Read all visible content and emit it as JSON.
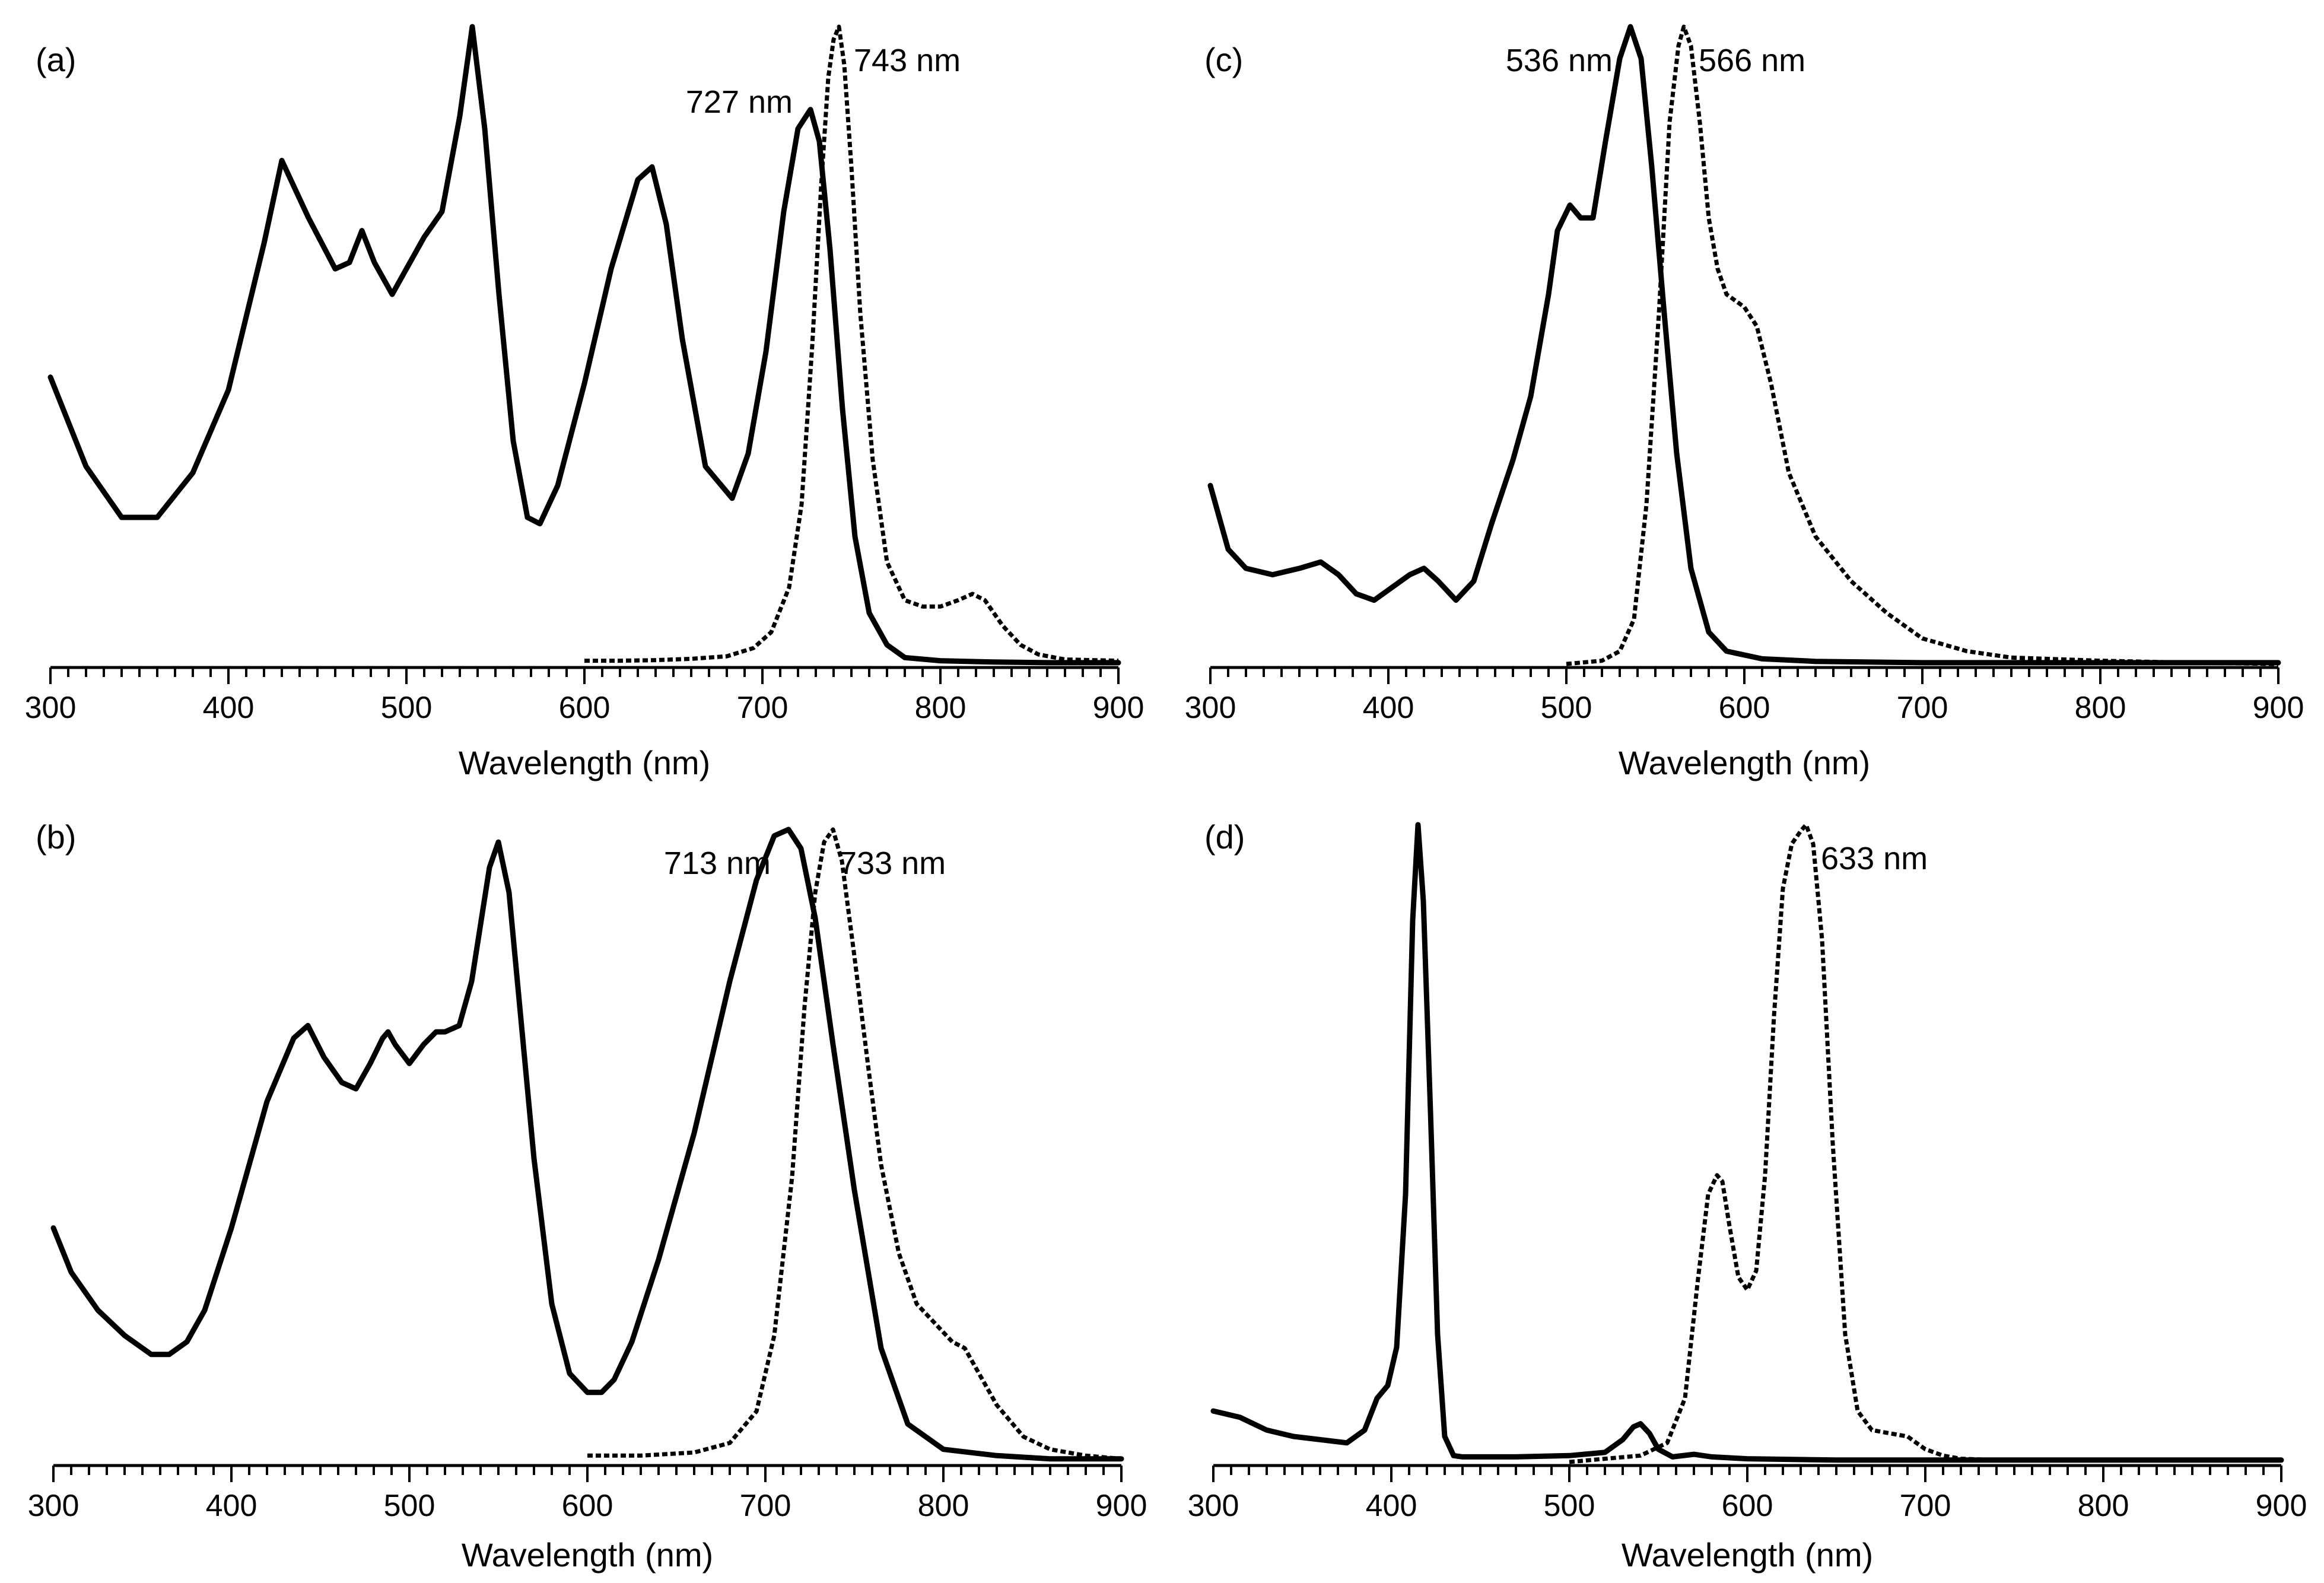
{
  "chart_data": [
    {
      "panel": "(a)",
      "type": "line",
      "xlabel": "Wavelength (nm)",
      "xlim": [
        300,
        900
      ],
      "ylim": [
        0,
        1
      ],
      "xticks": [
        300,
        400,
        500,
        600,
        700,
        800,
        900
      ],
      "annotations": [
        {
          "text": "727 nm",
          "x": 727
        },
        {
          "text": "743 nm",
          "x": 743
        }
      ],
      "series": [
        {
          "style": "solid",
          "x": [
            300,
            320,
            340,
            360,
            380,
            400,
            420,
            430,
            445,
            460,
            468,
            475,
            482,
            492,
            500,
            510,
            520,
            530,
            537,
            544,
            552,
            560,
            568,
            575,
            585,
            600,
            615,
            630,
            638,
            646,
            655,
            668,
            683,
            692,
            702,
            712,
            720,
            727,
            732,
            738,
            745,
            752,
            760,
            770,
            780,
            800,
            830,
            860,
            900
          ],
          "y": [
            0.45,
            0.31,
            0.23,
            0.23,
            0.3,
            0.43,
            0.66,
            0.79,
            0.7,
            0.62,
            0.63,
            0.68,
            0.63,
            0.58,
            0.62,
            0.67,
            0.71,
            0.86,
            1.0,
            0.84,
            0.58,
            0.35,
            0.23,
            0.22,
            0.28,
            0.44,
            0.62,
            0.76,
            0.78,
            0.69,
            0.51,
            0.31,
            0.26,
            0.33,
            0.49,
            0.71,
            0.84,
            0.87,
            0.82,
            0.65,
            0.4,
            0.2,
            0.08,
            0.03,
            0.01,
            0.005,
            0.003,
            0.002,
            0.002
          ]
        },
        {
          "style": "dotted",
          "x": [
            600,
            620,
            640,
            660,
            680,
            695,
            705,
            715,
            722,
            728,
            733,
            737,
            740,
            743,
            746,
            750,
            755,
            762,
            770,
            780,
            790,
            800,
            810,
            818,
            825,
            835,
            845,
            855,
            870,
            900
          ],
          "y": [
            0.005,
            0.005,
            0.006,
            0.008,
            0.012,
            0.025,
            0.05,
            0.12,
            0.25,
            0.5,
            0.75,
            0.92,
            0.98,
            1.0,
            0.94,
            0.78,
            0.55,
            0.32,
            0.16,
            0.1,
            0.09,
            0.09,
            0.1,
            0.11,
            0.1,
            0.06,
            0.03,
            0.015,
            0.007,
            0.005
          ]
        }
      ]
    },
    {
      "panel": "(b)",
      "type": "line",
      "xlabel": "Wavelength (nm)",
      "xlim": [
        300,
        900
      ],
      "ylim": [
        0,
        1
      ],
      "xticks": [
        300,
        400,
        500,
        600,
        700,
        800,
        900
      ],
      "annotations": [
        {
          "text": "713 nm",
          "x": 713
        },
        {
          "text": "733 nm",
          "x": 733
        }
      ],
      "series": [
        {
          "style": "solid",
          "x": [
            300,
            310,
            325,
            340,
            355,
            365,
            375,
            385,
            400,
            420,
            435,
            443,
            452,
            462,
            470,
            478,
            485,
            488,
            492,
            500,
            508,
            515,
            520,
            528,
            535,
            545,
            550,
            556,
            562,
            570,
            580,
            590,
            600,
            608,
            615,
            625,
            640,
            660,
            680,
            695,
            705,
            713,
            720,
            728,
            738,
            750,
            765,
            780,
            800,
            830,
            860,
            900
          ],
          "y": [
            0.37,
            0.3,
            0.24,
            0.2,
            0.17,
            0.17,
            0.19,
            0.24,
            0.37,
            0.57,
            0.67,
            0.69,
            0.64,
            0.6,
            0.59,
            0.63,
            0.67,
            0.68,
            0.66,
            0.63,
            0.66,
            0.68,
            0.68,
            0.69,
            0.76,
            0.94,
            0.98,
            0.9,
            0.72,
            0.48,
            0.25,
            0.14,
            0.11,
            0.11,
            0.13,
            0.19,
            0.32,
            0.52,
            0.76,
            0.92,
            0.99,
            1.0,
            0.97,
            0.86,
            0.66,
            0.43,
            0.18,
            0.06,
            0.02,
            0.01,
            0.005,
            0.005
          ]
        },
        {
          "style": "dotted",
          "x": [
            600,
            630,
            660,
            680,
            695,
            705,
            715,
            722,
            728,
            733,
            738,
            743,
            750,
            758,
            765,
            775,
            785,
            795,
            805,
            812,
            820,
            830,
            845,
            860,
            880,
            900
          ],
          "y": [
            0.01,
            0.01,
            0.015,
            0.03,
            0.08,
            0.2,
            0.45,
            0.72,
            0.9,
            0.98,
            1.0,
            0.95,
            0.8,
            0.62,
            0.47,
            0.33,
            0.25,
            0.22,
            0.19,
            0.18,
            0.14,
            0.09,
            0.04,
            0.02,
            0.01,
            0.005
          ]
        }
      ]
    },
    {
      "panel": "(c)",
      "type": "line",
      "xlabel": "Wavelength (nm)",
      "xlim": [
        300,
        900
      ],
      "ylim": [
        0,
        1
      ],
      "xticks": [
        300,
        400,
        500,
        600,
        700,
        800,
        900
      ],
      "annotations": [
        {
          "text": "536 nm",
          "x": 536
        },
        {
          "text": "566 nm",
          "x": 566
        }
      ],
      "series": [
        {
          "style": "solid",
          "x": [
            300,
            310,
            320,
            335,
            350,
            362,
            372,
            382,
            392,
            402,
            412,
            420,
            428,
            438,
            448,
            458,
            470,
            480,
            490,
            495,
            502,
            508,
            515,
            522,
            530,
            536,
            542,
            548,
            555,
            562,
            570,
            580,
            590,
            610,
            640,
            700,
            800,
            900
          ],
          "y": [
            0.28,
            0.18,
            0.15,
            0.14,
            0.15,
            0.16,
            0.14,
            0.11,
            0.1,
            0.12,
            0.14,
            0.15,
            0.13,
            0.1,
            0.13,
            0.22,
            0.32,
            0.42,
            0.58,
            0.68,
            0.72,
            0.7,
            0.7,
            0.82,
            0.95,
            1.0,
            0.95,
            0.78,
            0.55,
            0.33,
            0.15,
            0.05,
            0.02,
            0.008,
            0.004,
            0.002,
            0.002,
            0.002
          ]
        },
        {
          "style": "dotted",
          "x": [
            500,
            520,
            530,
            538,
            545,
            552,
            558,
            563,
            566,
            570,
            575,
            580,
            585,
            590,
            595,
            600,
            607,
            615,
            625,
            640,
            660,
            680,
            700,
            725,
            750,
            800,
            850,
            900
          ],
          "y": [
            0.0,
            0.005,
            0.02,
            0.07,
            0.25,
            0.55,
            0.85,
            0.97,
            1.0,
            0.97,
            0.85,
            0.7,
            0.62,
            0.58,
            0.57,
            0.56,
            0.53,
            0.44,
            0.3,
            0.2,
            0.13,
            0.08,
            0.04,
            0.02,
            0.01,
            0.005,
            0.002,
            0.0
          ]
        }
      ]
    },
    {
      "panel": "(d)",
      "type": "line",
      "xlabel": "Wavelength (nm)",
      "xlim": [
        300,
        900
      ],
      "ylim": [
        0,
        1
      ],
      "xticks": [
        300,
        400,
        500,
        600,
        700,
        800,
        900
      ],
      "annotations": [
        {
          "text": "633 nm",
          "x": 633
        }
      ],
      "series": [
        {
          "style": "solid",
          "x": [
            300,
            315,
            330,
            345,
            360,
            375,
            385,
            392,
            398,
            403,
            408,
            412,
            415,
            418,
            422,
            426,
            430,
            435,
            440,
            450,
            470,
            500,
            520,
            530,
            536,
            540,
            545,
            550,
            558,
            570,
            580,
            600,
            650,
            700,
            800,
            900
          ],
          "y": [
            0.08,
            0.07,
            0.05,
            0.04,
            0.035,
            0.03,
            0.05,
            0.1,
            0.12,
            0.18,
            0.42,
            0.85,
            1.0,
            0.88,
            0.55,
            0.2,
            0.04,
            0.01,
            0.008,
            0.008,
            0.008,
            0.01,
            0.015,
            0.035,
            0.055,
            0.06,
            0.045,
            0.02,
            0.008,
            0.012,
            0.008,
            0.005,
            0.003,
            0.003,
            0.003,
            0.003
          ]
        },
        {
          "style": "dotted",
          "x": [
            500,
            520,
            540,
            555,
            565,
            572,
            578,
            583,
            586,
            590,
            595,
            600,
            605,
            610,
            615,
            620,
            625,
            630,
            633,
            637,
            642,
            648,
            655,
            662,
            670,
            680,
            690,
            700,
            710,
            720,
            740,
            760,
            780,
            800
          ],
          "y": [
            0.0,
            0.005,
            0.01,
            0.03,
            0.1,
            0.28,
            0.42,
            0.45,
            0.44,
            0.37,
            0.29,
            0.27,
            0.3,
            0.45,
            0.7,
            0.9,
            0.97,
            0.99,
            1.0,
            0.97,
            0.82,
            0.5,
            0.2,
            0.08,
            0.05,
            0.045,
            0.04,
            0.02,
            0.01,
            0.005,
            0.003,
            0.003,
            0.003,
            0.003
          ]
        }
      ]
    }
  ]
}
